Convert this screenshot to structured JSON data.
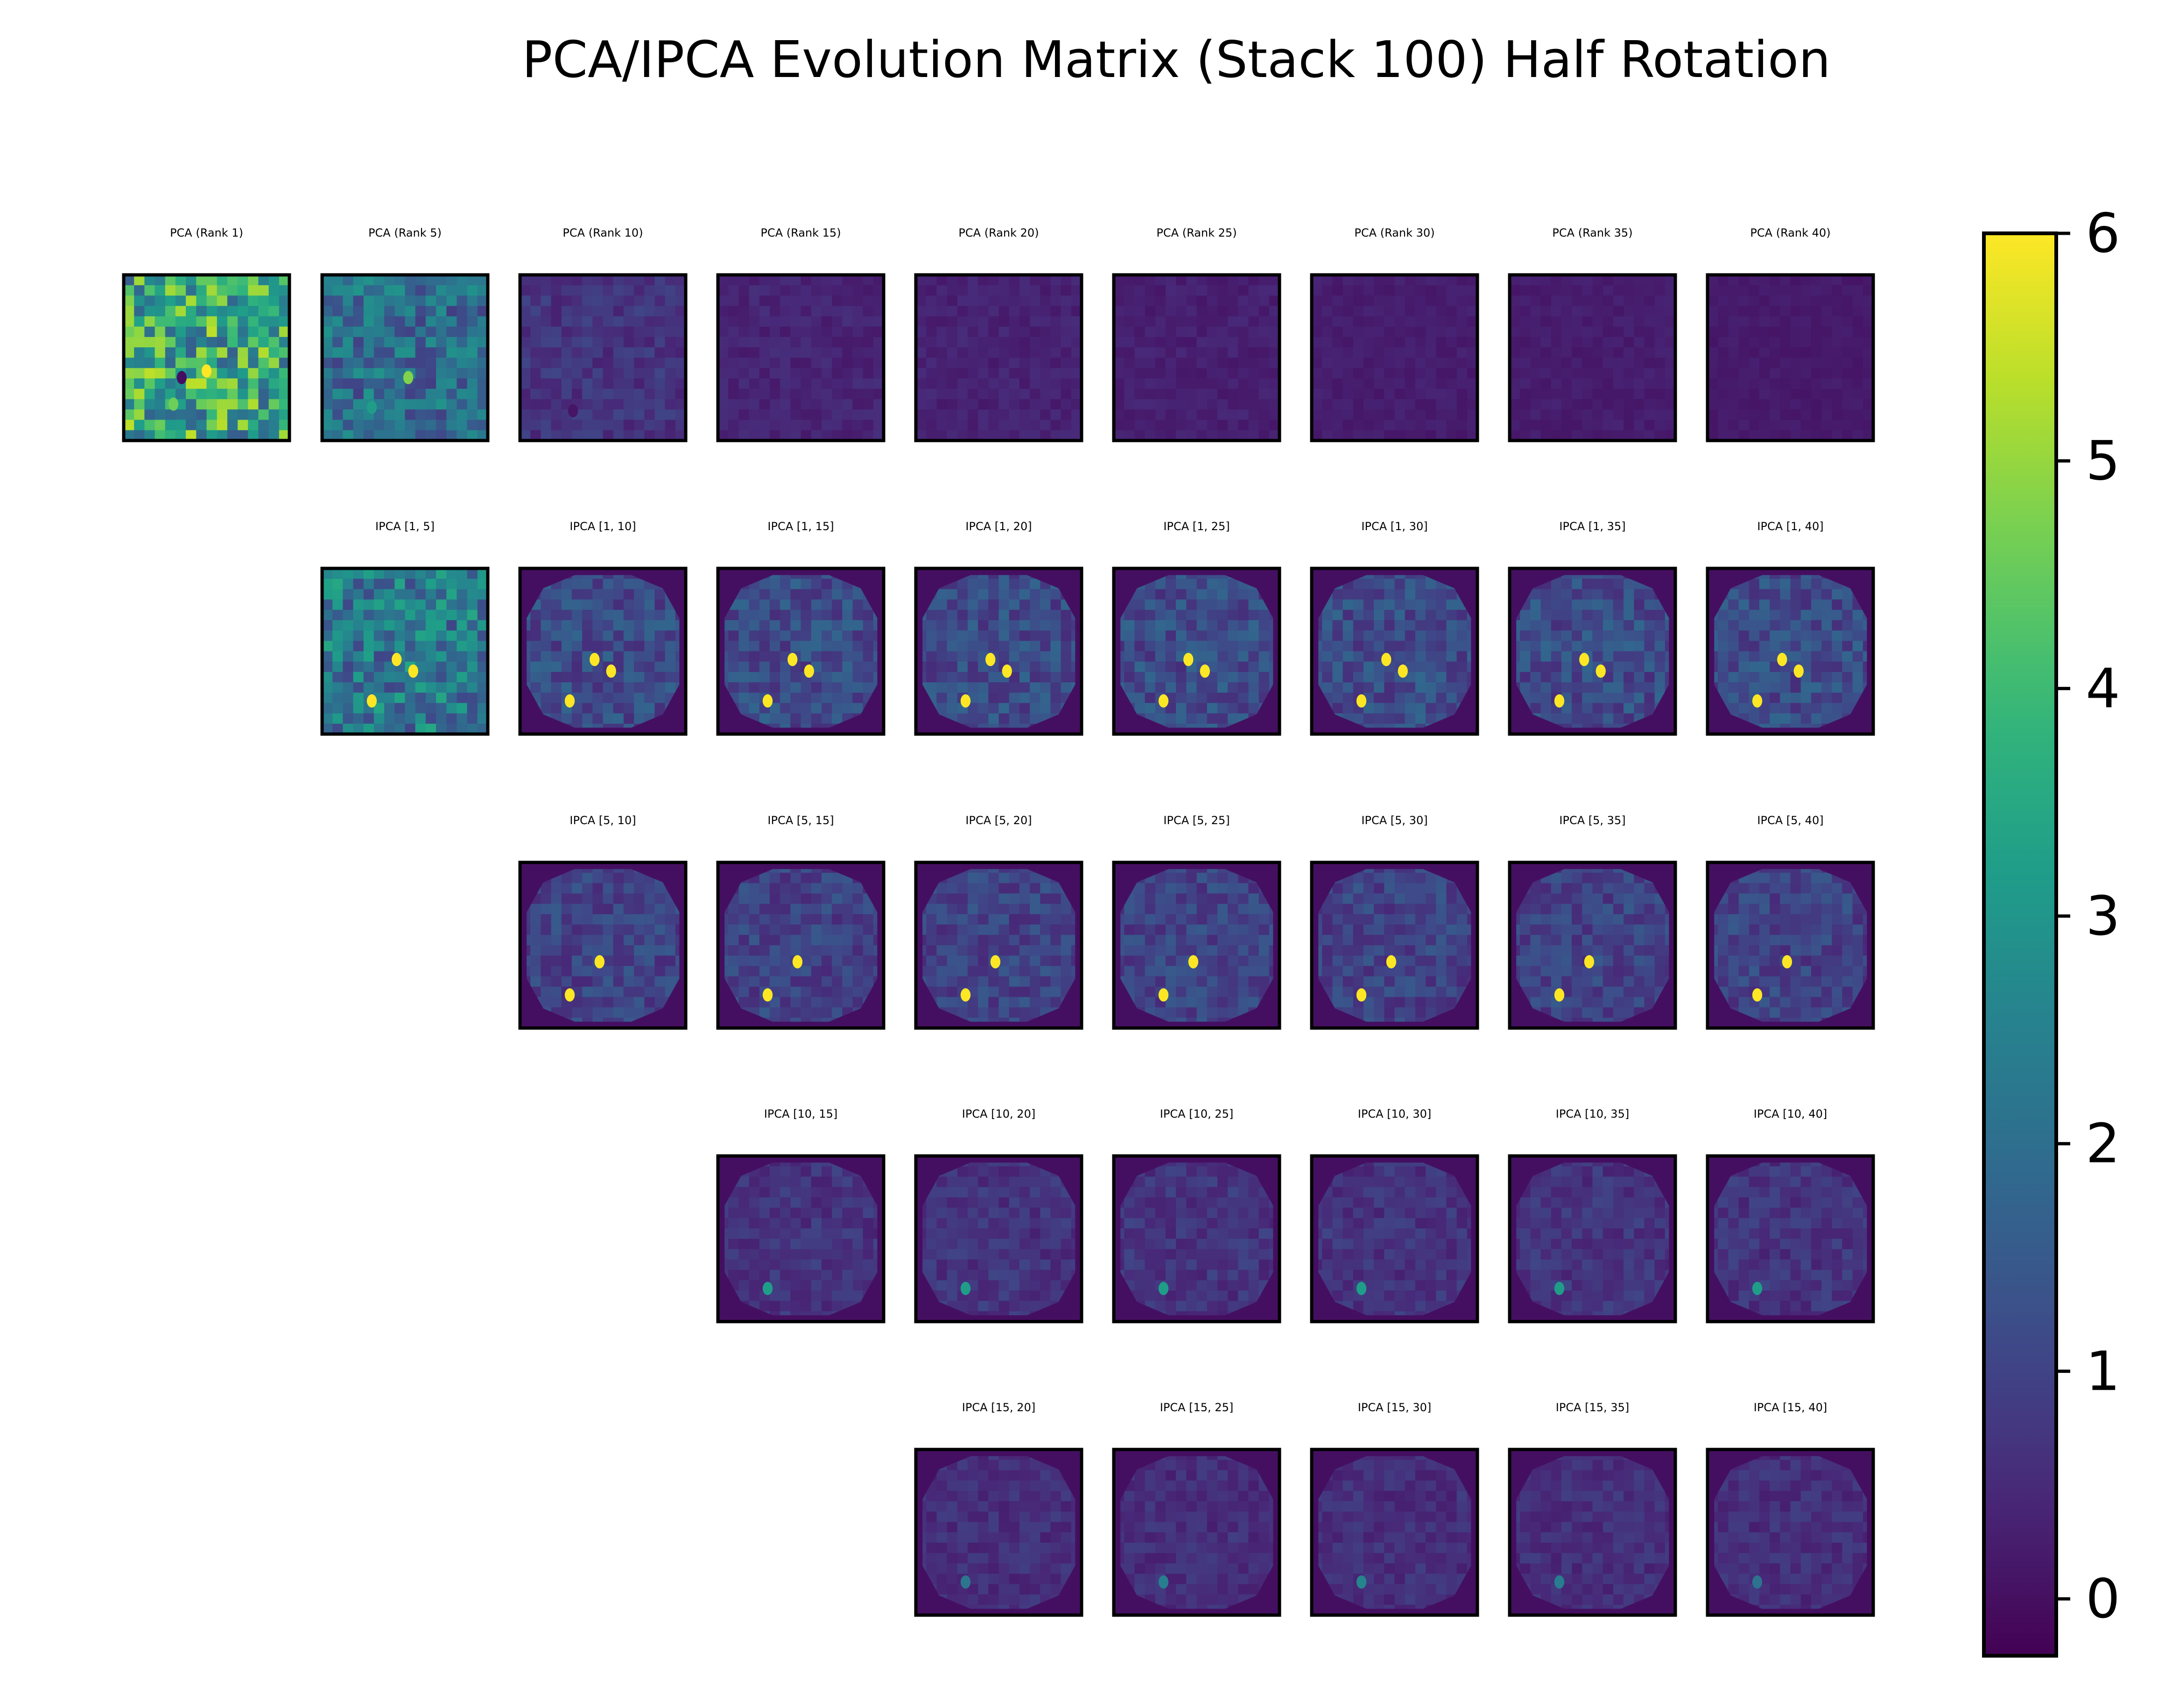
{
  "chart_data": {
    "type": "heatmap",
    "title": "PCA/IPCA Evolution Matrix (Stack 100) Half Rotation",
    "colormap": "viridis",
    "color_range": [
      -0.25,
      6.0
    ],
    "colorbar_ticks": [
      "0",
      "1",
      "2",
      "3",
      "4",
      "5",
      "6"
    ],
    "rows": [
      {
        "panels": [
          {
            "label": "PCA (Rank 1)",
            "col": 0,
            "mask": "full",
            "background": 3.6,
            "planets": [
              [
                0.3,
                0.78,
                4.6
              ],
              [
                0.35,
                0.62,
                0
              ],
              [
                0.5,
                0.58,
                6
              ]
            ]
          },
          {
            "label": "PCA (Rank 5)",
            "col": 1,
            "mask": "full",
            "background": 2.0,
            "planets": [
              [
                0.3,
                0.8,
                3.2
              ],
              [
                0.52,
                0.62,
                4.8
              ]
            ]
          },
          {
            "label": "PCA (Rank 10)",
            "col": 2,
            "mask": "full",
            "background": 0.7,
            "planets": [
              [
                0.32,
                0.82,
                0.1
              ]
            ]
          },
          {
            "label": "PCA (Rank 15)",
            "col": 3,
            "mask": "full",
            "background": 0.4,
            "planets": []
          },
          {
            "label": "PCA (Rank 20)",
            "col": 4,
            "mask": "full",
            "background": 0.35,
            "planets": []
          },
          {
            "label": "PCA (Rank 25)",
            "col": 5,
            "mask": "full",
            "background": 0.3,
            "planets": []
          },
          {
            "label": "PCA (Rank 30)",
            "col": 6,
            "mask": "full",
            "background": 0.25,
            "planets": []
          },
          {
            "label": "PCA (Rank 35)",
            "col": 7,
            "mask": "full",
            "background": 0.25,
            "planets": []
          },
          {
            "label": "PCA (Rank 40)",
            "col": 8,
            "mask": "full",
            "background": 0.2,
            "planets": []
          }
        ]
      },
      {
        "panels": [
          {
            "label": "IPCA [1, 5]",
            "col": 1,
            "mask": "full",
            "background": 2.3,
            "planets": [
              [
                0.3,
                0.8,
                6
              ],
              [
                0.45,
                0.55,
                6
              ],
              [
                0.55,
                0.62,
                6
              ]
            ]
          },
          {
            "label": "IPCA [1, 10]",
            "col": 2,
            "mask": "disk",
            "background": 1.2,
            "planets": [
              [
                0.3,
                0.8,
                6
              ],
              [
                0.45,
                0.55,
                6
              ],
              [
                0.55,
                0.62,
                6
              ]
            ]
          },
          {
            "label": "IPCA [1, 15]",
            "col": 3,
            "mask": "disk",
            "background": 1.2,
            "planets": [
              [
                0.3,
                0.8,
                6
              ],
              [
                0.45,
                0.55,
                6
              ],
              [
                0.55,
                0.62,
                6
              ]
            ]
          },
          {
            "label": "IPCA [1, 20]",
            "col": 4,
            "mask": "disk",
            "background": 1.2,
            "planets": [
              [
                0.3,
                0.8,
                6
              ],
              [
                0.45,
                0.55,
                6
              ],
              [
                0.55,
                0.62,
                6
              ]
            ]
          },
          {
            "label": "IPCA [1, 25]",
            "col": 5,
            "mask": "disk",
            "background": 1.2,
            "planets": [
              [
                0.3,
                0.8,
                6
              ],
              [
                0.45,
                0.55,
                6
              ],
              [
                0.55,
                0.62,
                6
              ]
            ]
          },
          {
            "label": "IPCA [1, 30]",
            "col": 6,
            "mask": "disk",
            "background": 1.2,
            "planets": [
              [
                0.3,
                0.8,
                6
              ],
              [
                0.45,
                0.55,
                6
              ],
              [
                0.55,
                0.62,
                6
              ]
            ]
          },
          {
            "label": "IPCA [1, 35]",
            "col": 7,
            "mask": "disk",
            "background": 1.2,
            "planets": [
              [
                0.3,
                0.8,
                6
              ],
              [
                0.45,
                0.55,
                6
              ],
              [
                0.55,
                0.62,
                6
              ]
            ]
          },
          {
            "label": "IPCA [1, 40]",
            "col": 8,
            "mask": "disk",
            "background": 1.2,
            "planets": [
              [
                0.3,
                0.8,
                6
              ],
              [
                0.45,
                0.55,
                6
              ],
              [
                0.55,
                0.62,
                6
              ]
            ]
          }
        ]
      },
      {
        "panels": [
          {
            "label": "IPCA [5, 10]",
            "col": 2,
            "mask": "disk",
            "background": 1.0,
            "planets": [
              [
                0.3,
                0.8,
                6
              ],
              [
                0.48,
                0.6,
                6
              ]
            ]
          },
          {
            "label": "IPCA [5, 15]",
            "col": 3,
            "mask": "disk",
            "background": 1.0,
            "planets": [
              [
                0.3,
                0.8,
                6
              ],
              [
                0.48,
                0.6,
                6
              ]
            ]
          },
          {
            "label": "IPCA [5, 20]",
            "col": 4,
            "mask": "disk",
            "background": 1.0,
            "planets": [
              [
                0.3,
                0.8,
                6
              ],
              [
                0.48,
                0.6,
                6
              ]
            ]
          },
          {
            "label": "IPCA [5, 25]",
            "col": 5,
            "mask": "disk",
            "background": 1.0,
            "planets": [
              [
                0.3,
                0.8,
                6
              ],
              [
                0.48,
                0.6,
                6
              ]
            ]
          },
          {
            "label": "IPCA [5, 30]",
            "col": 6,
            "mask": "disk",
            "background": 1.0,
            "planets": [
              [
                0.3,
                0.8,
                6
              ],
              [
                0.48,
                0.6,
                6
              ]
            ]
          },
          {
            "label": "IPCA [5, 35]",
            "col": 7,
            "mask": "disk",
            "background": 1.0,
            "planets": [
              [
                0.3,
                0.8,
                6
              ],
              [
                0.48,
                0.6,
                6
              ]
            ]
          },
          {
            "label": "IPCA [5, 40]",
            "col": 8,
            "mask": "disk",
            "background": 1.0,
            "planets": [
              [
                0.3,
                0.8,
                6
              ],
              [
                0.48,
                0.6,
                6
              ]
            ]
          }
        ]
      },
      {
        "panels": [
          {
            "label": "IPCA [10, 15]",
            "col": 3,
            "mask": "disk",
            "background": 0.7,
            "planets": [
              [
                0.3,
                0.8,
                3.2
              ]
            ]
          },
          {
            "label": "IPCA [10, 20]",
            "col": 4,
            "mask": "disk",
            "background": 0.7,
            "planets": [
              [
                0.3,
                0.8,
                3.2
              ]
            ]
          },
          {
            "label": "IPCA [10, 25]",
            "col": 5,
            "mask": "disk",
            "background": 0.7,
            "planets": [
              [
                0.3,
                0.8,
                3.2
              ]
            ]
          },
          {
            "label": "IPCA [10, 30]",
            "col": 6,
            "mask": "disk",
            "background": 0.7,
            "planets": [
              [
                0.3,
                0.8,
                3.2
              ]
            ]
          },
          {
            "label": "IPCA [10, 35]",
            "col": 7,
            "mask": "disk",
            "background": 0.7,
            "planets": [
              [
                0.3,
                0.8,
                3.2
              ]
            ]
          },
          {
            "label": "IPCA [10, 40]",
            "col": 8,
            "mask": "disk",
            "background": 0.7,
            "planets": [
              [
                0.3,
                0.8,
                3.2
              ]
            ]
          }
        ]
      },
      {
        "panels": [
          {
            "label": "IPCA [15, 20]",
            "col": 4,
            "mask": "disk",
            "background": 0.6,
            "planets": [
              [
                0.3,
                0.8,
                2.2
              ]
            ]
          },
          {
            "label": "IPCA [15, 25]",
            "col": 5,
            "mask": "disk",
            "background": 0.6,
            "planets": [
              [
                0.3,
                0.8,
                2.4
              ]
            ]
          },
          {
            "label": "IPCA [15, 30]",
            "col": 6,
            "mask": "disk",
            "background": 0.6,
            "planets": [
              [
                0.3,
                0.8,
                2.6
              ]
            ]
          },
          {
            "label": "IPCA [15, 35]",
            "col": 7,
            "mask": "disk",
            "background": 0.6,
            "planets": [
              [
                0.3,
                0.8,
                2.4
              ]
            ]
          },
          {
            "label": "IPCA [15, 40]",
            "col": 8,
            "mask": "disk",
            "background": 0.6,
            "planets": [
              [
                0.3,
                0.8,
                2.1
              ]
            ]
          }
        ]
      }
    ]
  }
}
